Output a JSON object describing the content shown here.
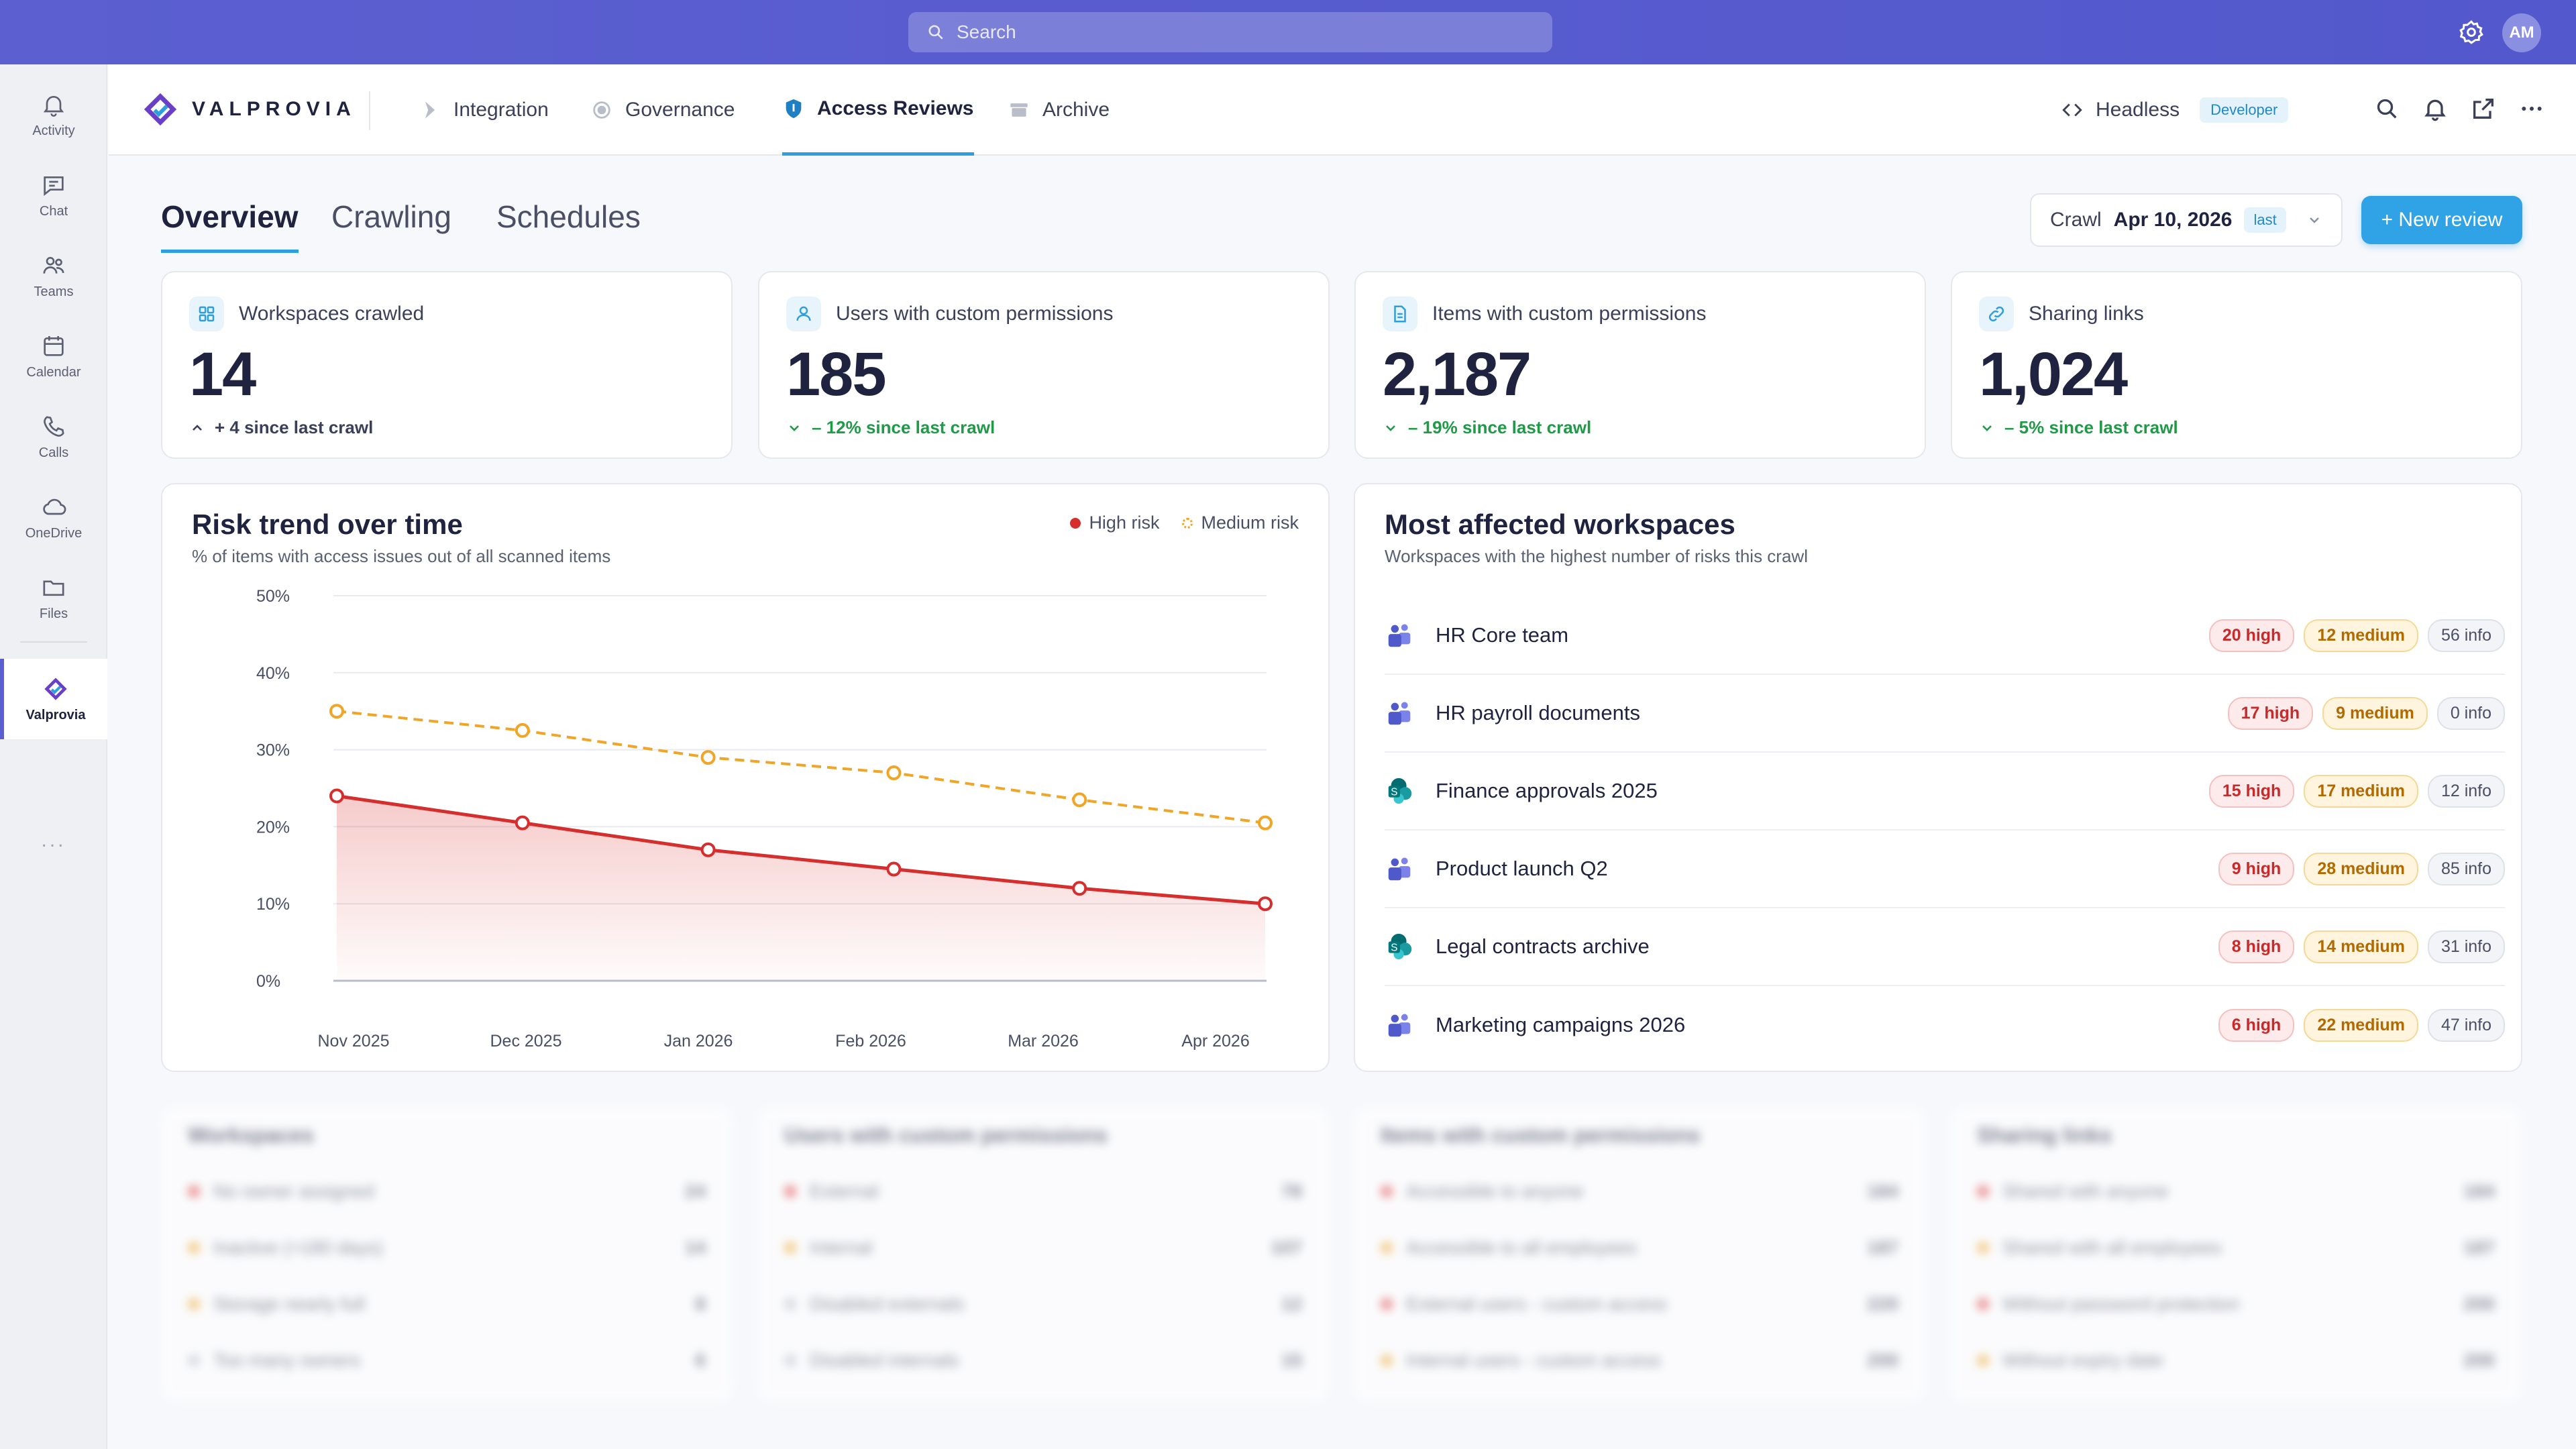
{
  "topbar": {
    "search_placeholder": "Search",
    "avatar_initials": "AM"
  },
  "rail": {
    "items": [
      {
        "label": "Activity",
        "icon": "bell-icon"
      },
      {
        "label": "Chat",
        "icon": "chat-icon"
      },
      {
        "label": "Teams",
        "icon": "teams-icon"
      },
      {
        "label": "Calendar",
        "icon": "calendar-icon"
      },
      {
        "label": "Calls",
        "icon": "phone-icon"
      },
      {
        "label": "OneDrive",
        "icon": "cloud-icon"
      },
      {
        "label": "Files",
        "icon": "folder-icon"
      },
      {
        "label": "Valprovia",
        "icon": "valprovia-logo-icon"
      }
    ],
    "more": "..."
  },
  "appbar": {
    "brand": "VALPROVIA",
    "nav": [
      {
        "label": "Integration",
        "active": false
      },
      {
        "label": "Governance",
        "active": false
      },
      {
        "label": "Access Reviews",
        "active": true
      },
      {
        "label": "Archive",
        "active": false
      }
    ],
    "headless_label": "Headless",
    "developer_badge": "Developer"
  },
  "tabs": [
    {
      "label": "Overview",
      "active": true
    },
    {
      "label": "Crawling",
      "active": false
    },
    {
      "label": "Schedules",
      "active": false
    }
  ],
  "crawl": {
    "label": "Crawl",
    "date": "Apr 10, 2026",
    "badge": "last"
  },
  "new_review_label": "+ New review",
  "kpis": [
    {
      "title": "Workspaces crawled",
      "value": "14",
      "delta": "+ 4 since last crawl",
      "trend": "up"
    },
    {
      "title": "Users with custom permissions",
      "value": "185",
      "delta": "– 12% since last crawl",
      "trend": "down"
    },
    {
      "title": "Items with custom permissions",
      "value": "2,187",
      "delta": "– 19% since last crawl",
      "trend": "down"
    },
    {
      "title": "Sharing links",
      "value": "1,024",
      "delta": "– 5% since last crawl",
      "trend": "down"
    }
  ],
  "risk_panel": {
    "title": "Risk trend over time",
    "subtitle": "% of items with access issues out of all scanned items",
    "legend_high": "High risk",
    "legend_medium": "Medium risk"
  },
  "chart_data": {
    "type": "line",
    "title": "Risk trend over time",
    "x": [
      "Nov 2025",
      "Dec 2025",
      "Jan 2026",
      "Feb 2026",
      "Mar 2026",
      "Apr 2026"
    ],
    "y_ticks": [
      "50%",
      "40%",
      "30%",
      "20%",
      "10%",
      "0%"
    ],
    "ylim": [
      0,
      50
    ],
    "series": [
      {
        "name": "High risk",
        "values": [
          24,
          20.5,
          17,
          14.5,
          12,
          10
        ],
        "color": "#d62d2d",
        "area": true
      },
      {
        "name": "Medium risk",
        "values": [
          35,
          32.5,
          29,
          27,
          23.5,
          20.5
        ],
        "color": "#f0a526",
        "dashed": true
      }
    ],
    "grid": true,
    "legend": "top-right"
  },
  "workspaces_panel": {
    "title": "Most affected workspaces",
    "subtitle": "Workspaces with the highest number of risks this crawl",
    "rows": [
      {
        "name": "HR Core team",
        "icon": "teams-icon",
        "high": "20 high",
        "medium": "12 medium",
        "info": "56 info"
      },
      {
        "name": "HR payroll documents",
        "icon": "teams-icon",
        "high": "17 high",
        "medium": "9 medium",
        "info": "0 info"
      },
      {
        "name": "Finance approvals 2025",
        "icon": "sharepoint-icon",
        "high": "15 high",
        "medium": "17 medium",
        "info": "12 info"
      },
      {
        "name": "Product launch Q2",
        "icon": "teams-icon",
        "high": "9 high",
        "medium": "28 medium",
        "info": "85 info"
      },
      {
        "name": "Legal contracts archive",
        "icon": "sharepoint-icon",
        "high": "8 high",
        "medium": "14 medium",
        "info": "31 info"
      },
      {
        "name": "Marketing campaigns 2026",
        "icon": "teams-icon",
        "high": "6 high",
        "medium": "22 medium",
        "info": "47 info"
      }
    ]
  },
  "blurred": [
    {
      "title": "Workspaces",
      "rows": [
        [
          "No owner assigned",
          "24",
          "#e0393e"
        ],
        [
          "Inactive (>180 days)",
          "14",
          "#f0a526"
        ],
        [
          "Storage nearly full",
          "8",
          "#f0a526"
        ],
        [
          "Too many owners",
          "6",
          "#b9bdca"
        ]
      ]
    },
    {
      "title": "Users with custom permissions",
      "rows": [
        [
          "External",
          "78",
          "#e0393e"
        ],
        [
          "Internal",
          "107",
          "#f0a526"
        ],
        [
          "Disabled externals",
          "12",
          "#b9bdca"
        ],
        [
          "Disabled internals",
          "15",
          "#b9bdca"
        ]
      ]
    },
    {
      "title": "Items with custom permissions",
      "rows": [
        [
          "Accessible to anyone",
          "184",
          "#e0393e"
        ],
        [
          "Accessible to all employees",
          "187",
          "#f0a526"
        ],
        [
          "External users - custom access",
          "220",
          "#e0393e"
        ],
        [
          "Internal users - custom access",
          "200",
          "#f0a526"
        ]
      ]
    },
    {
      "title": "Sharing links",
      "rows": [
        [
          "Shared with anyone",
          "184",
          "#e0393e"
        ],
        [
          "Shared with all employees",
          "187",
          "#f0a526"
        ],
        [
          "Without password protection",
          "200",
          "#e0393e"
        ],
        [
          "Without expiry date",
          "200",
          "#f0a526"
        ]
      ]
    }
  ]
}
